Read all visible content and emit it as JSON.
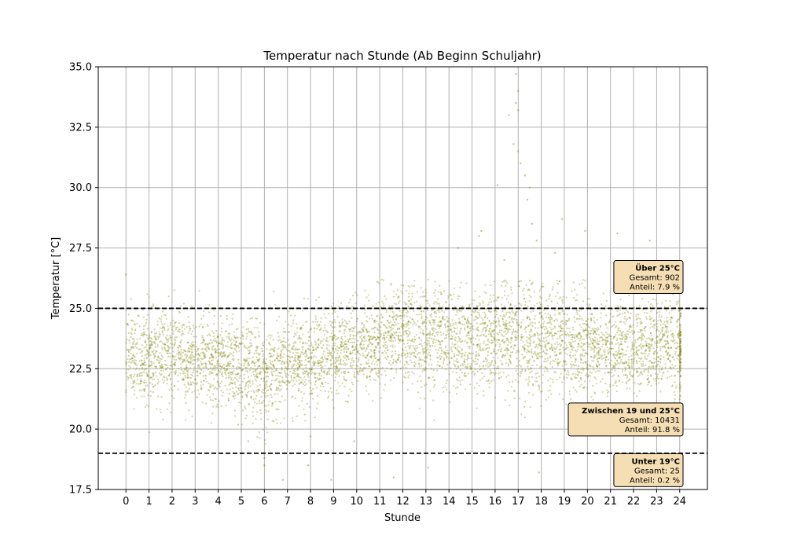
{
  "chart_data": {
    "type": "scatter",
    "title": "Temperatur nach Stunde (Ab Beginn Schuljahr)",
    "xlabel": "Stunde",
    "ylabel": "Temperatur [°C]",
    "xlim": [
      -1.2,
      25.2
    ],
    "ylim": [
      17.5,
      35.0
    ],
    "xticks": [
      0,
      1,
      2,
      3,
      4,
      5,
      6,
      7,
      8,
      9,
      10,
      11,
      12,
      13,
      14,
      15,
      16,
      17,
      18,
      19,
      20,
      21,
      22,
      23,
      24
    ],
    "yticks": [
      17.5,
      20.0,
      22.5,
      25.0,
      27.5,
      30.0,
      32.5,
      35.0
    ],
    "ytick_labels": [
      "17.5",
      "20.0",
      "22.5",
      "25.0",
      "27.5",
      "30.0",
      "32.5",
      "35.0"
    ],
    "grid": true,
    "point_color": "#808000",
    "threshold_lines": [
      {
        "y": 25.0,
        "style": "dashed",
        "color": "#000000"
      },
      {
        "y": 19.0,
        "style": "dashed",
        "color": "#000000"
      }
    ],
    "hourly_profile": [
      {
        "hour": 0,
        "mean": 23.0,
        "spread": 0.9
      },
      {
        "hour": 1,
        "mean": 23.0,
        "spread": 0.9
      },
      {
        "hour": 2,
        "mean": 23.0,
        "spread": 0.9
      },
      {
        "hour": 3,
        "mean": 22.9,
        "spread": 0.9
      },
      {
        "hour": 4,
        "mean": 22.8,
        "spread": 0.9
      },
      {
        "hour": 5,
        "mean": 22.5,
        "spread": 1.0
      },
      {
        "hour": 6,
        "mean": 22.2,
        "spread": 1.0
      },
      {
        "hour": 7,
        "mean": 22.6,
        "spread": 0.9
      },
      {
        "hour": 8,
        "mean": 22.8,
        "spread": 0.9
      },
      {
        "hour": 9,
        "mean": 23.2,
        "spread": 0.9
      },
      {
        "hour": 10,
        "mean": 23.4,
        "spread": 0.9
      },
      {
        "hour": 11,
        "mean": 23.7,
        "spread": 1.0
      },
      {
        "hour": 12,
        "mean": 23.9,
        "spread": 1.0
      },
      {
        "hour": 13,
        "mean": 23.8,
        "spread": 1.0
      },
      {
        "hour": 14,
        "mean": 23.7,
        "spread": 1.0
      },
      {
        "hour": 15,
        "mean": 23.7,
        "spread": 1.0
      },
      {
        "hour": 16,
        "mean": 23.8,
        "spread": 1.1
      },
      {
        "hour": 17,
        "mean": 23.8,
        "spread": 1.2
      },
      {
        "hour": 18,
        "mean": 23.7,
        "spread": 1.1
      },
      {
        "hour": 19,
        "mean": 23.5,
        "spread": 1.0
      },
      {
        "hour": 20,
        "mean": 23.4,
        "spread": 0.9
      },
      {
        "hour": 21,
        "mean": 23.4,
        "spread": 0.9
      },
      {
        "hour": 22,
        "mean": 23.3,
        "spread": 0.9
      },
      {
        "hour": 23,
        "mean": 23.5,
        "spread": 0.9
      },
      {
        "hour": 24,
        "mean": 23.3,
        "spread": 0.8
      }
    ],
    "outliers": [
      {
        "x": 16.9,
        "y": 34.7
      },
      {
        "x": 17.0,
        "y": 34.0
      },
      {
        "x": 16.9,
        "y": 33.5
      },
      {
        "x": 17.0,
        "y": 33.2
      },
      {
        "x": 16.6,
        "y": 33.0
      },
      {
        "x": 16.8,
        "y": 31.8
      },
      {
        "x": 17.0,
        "y": 31.5
      },
      {
        "x": 17.1,
        "y": 31.0
      },
      {
        "x": 17.3,
        "y": 30.5
      },
      {
        "x": 17.5,
        "y": 30.0
      },
      {
        "x": 17.4,
        "y": 29.5
      },
      {
        "x": 16.1,
        "y": 30.1
      },
      {
        "x": 15.4,
        "y": 28.2
      },
      {
        "x": 15.3,
        "y": 28.0
      },
      {
        "x": 17.6,
        "y": 28.5
      },
      {
        "x": 17.8,
        "y": 27.8
      },
      {
        "x": 18.9,
        "y": 28.7
      },
      {
        "x": 19.9,
        "y": 28.2
      },
      {
        "x": 21.3,
        "y": 28.1
      },
      {
        "x": 18.6,
        "y": 27.3
      },
      {
        "x": 14.4,
        "y": 27.5
      },
      {
        "x": 16.4,
        "y": 27.0
      },
      {
        "x": 22.7,
        "y": 27.8
      },
      {
        "x": 10.9,
        "y": 26.1
      },
      {
        "x": 0.0,
        "y": 26.4
      },
      {
        "x": 5.3,
        "y": 19.5
      },
      {
        "x": 6.0,
        "y": 18.8
      },
      {
        "x": 6.0,
        "y": 18.5
      },
      {
        "x": 6.8,
        "y": 17.9
      },
      {
        "x": 7.9,
        "y": 18.5
      },
      {
        "x": 8.9,
        "y": 17.9
      },
      {
        "x": 11.6,
        "y": 18.0
      },
      {
        "x": 13.1,
        "y": 18.4
      },
      {
        "x": 17.9,
        "y": 18.2
      },
      {
        "x": 9.9,
        "y": 19.5
      },
      {
        "x": 8.0,
        "y": 19.7
      }
    ],
    "annotations": [
      {
        "id": "above",
        "title": "Über 25°C",
        "line1": "Gesamt: 902",
        "line2": "Anteil: 7.9 %",
        "y": 26.3
      },
      {
        "id": "between",
        "title": "Zwischen 19 und 25°C",
        "line1": "Gesamt: 10431",
        "line2": "Anteil: 91.8 %",
        "y": 20.4
      },
      {
        "id": "below",
        "title": "Unter 19°C",
        "line1": "Gesamt: 25",
        "line2": "Anteil: 0.2 %",
        "y": 18.3
      }
    ],
    "annotation_box_fill": "#f5deb3",
    "annotation_box_stroke": "#000000"
  }
}
